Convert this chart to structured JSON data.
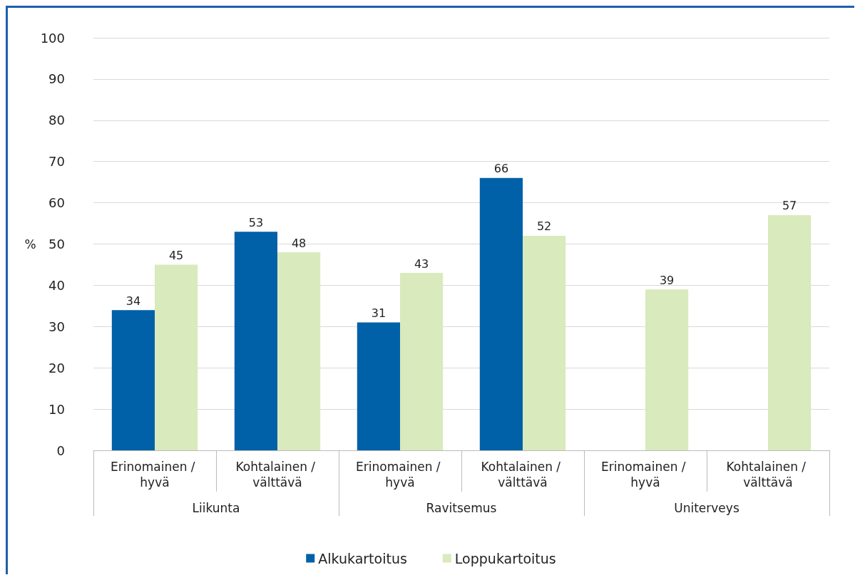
{
  "chart_data": {
    "type": "bar",
    "ylabel": "%",
    "categories": [
      "Erinomainen / hyvä",
      "Kohtalainen / välttävä",
      "Erinomainen / hyvä",
      "Kohtalainen / välttävä",
      "Erinomainen / hyvä",
      "Kohtalainen / välttävä"
    ],
    "series": [
      {
        "name": "Alkukartoitus",
        "color": "#0060a8",
        "values": [
          34,
          53,
          31,
          66,
          null,
          null
        ]
      },
      {
        "name": "Loppukartoitus",
        "color": "#d9eabd",
        "values": [
          45,
          48,
          43,
          52,
          39,
          57
        ]
      }
    ],
    "annotations": [
      "Liikunta",
      "Ravitsemus",
      "Uniterveys"
    ],
    "ylim": [
      0,
      100
    ],
    "yticks": [
      0,
      10,
      20,
      30,
      40,
      50,
      60,
      70,
      80,
      90,
      100
    ],
    "grid": "y",
    "legend": "bottom",
    "data_labels": true
  }
}
